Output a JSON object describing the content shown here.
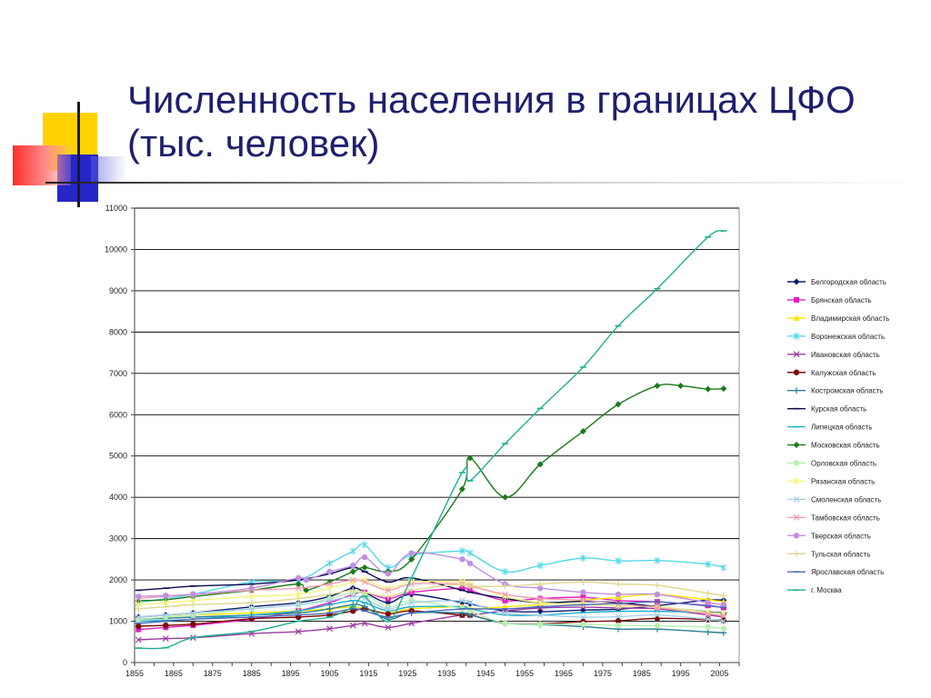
{
  "slide": {
    "title_line1": "Численность населения в границах ЦФО",
    "title_line2": "(тыс. человек)"
  },
  "chart_data": {
    "type": "line",
    "title": "",
    "xlabel": "",
    "ylabel": "",
    "xlim": [
      1855,
      2010
    ],
    "ylim": [
      0,
      11000
    ],
    "x_ticks": [
      1855,
      1865,
      1875,
      1885,
      1895,
      1905,
      1915,
      1925,
      1935,
      1945,
      1955,
      1965,
      1975,
      1985,
      1995,
      2005
    ],
    "y_ticks": [
      0,
      1000,
      2000,
      3000,
      4000,
      5000,
      6000,
      7000,
      8000,
      9000,
      10000,
      11000
    ],
    "grid": "horizontal",
    "legend": "right",
    "series": [
      {
        "name": "Белгородская область",
        "color": "#0a1a6e",
        "marker": "diamond",
        "x": [
          1856,
          1863,
          1870,
          1885,
          1897,
          1905,
          1911,
          1914,
          1920,
          1926,
          1939,
          1941,
          1950,
          1959,
          1970,
          1979,
          1989,
          2002,
          2006
        ],
        "y": [
          1100,
          1150,
          1200,
          1350,
          1450,
          1600,
          1800,
          1700,
          1450,
          1650,
          1450,
          1420,
          1250,
          1230,
          1270,
          1290,
          1380,
          1510,
          1510
        ]
      },
      {
        "name": "Брянская область",
        "color": "#e020c0",
        "marker": "square",
        "x": [
          1856,
          1863,
          1870,
          1885,
          1897,
          1905,
          1911,
          1914,
          1920,
          1926,
          1939,
          1941,
          1950,
          1959,
          1970,
          1979,
          1989,
          2002,
          2006
        ],
        "y": [
          800,
          850,
          900,
          1050,
          1250,
          1450,
          1650,
          1700,
          1550,
          1700,
          1800,
          1750,
          1500,
          1550,
          1580,
          1500,
          1470,
          1380,
          1330
        ]
      },
      {
        "name": "Владимирская область",
        "color": "#ffe600",
        "marker": "triangle",
        "x": [
          1856,
          1863,
          1870,
          1885,
          1897,
          1905,
          1911,
          1914,
          1920,
          1926,
          1939,
          1941,
          1950,
          1959,
          1970,
          1979,
          1989,
          2002,
          2006
        ],
        "y": [
          1050,
          1100,
          1150,
          1200,
          1250,
          1300,
          1350,
          1300,
          1200,
          1300,
          1350,
          1300,
          1350,
          1400,
          1510,
          1580,
          1650,
          1520,
          1470
        ]
      },
      {
        "name": "Воронежская область",
        "color": "#55d8e8",
        "marker": "star",
        "x": [
          1856,
          1863,
          1870,
          1885,
          1897,
          1905,
          1911,
          1914,
          1920,
          1926,
          1939,
          1941,
          1950,
          1959,
          1970,
          1979,
          1989,
          2002,
          2006
        ],
        "y": [
          1450,
          1550,
          1650,
          1950,
          2000,
          2400,
          2700,
          2850,
          2300,
          2600,
          2700,
          2650,
          2200,
          2350,
          2530,
          2460,
          2470,
          2380,
          2300
        ]
      },
      {
        "name": "Ивановская область",
        "color": "#9a3aa0",
        "marker": "x",
        "x": [
          1856,
          1863,
          1870,
          1885,
          1897,
          1905,
          1911,
          1914,
          1920,
          1926,
          1939,
          1941,
          1950,
          1959,
          1970,
          1979,
          1989,
          2002,
          2006
        ],
        "y": [
          550,
          580,
          600,
          700,
          750,
          820,
          900,
          950,
          850,
          950,
          1150,
          1150,
          1250,
          1320,
          1340,
          1320,
          1300,
          1150,
          1100
        ]
      },
      {
        "name": "Калужская область",
        "color": "#7a0a0a",
        "marker": "circle",
        "x": [
          1856,
          1863,
          1870,
          1885,
          1897,
          1905,
          1911,
          1914,
          1920,
          1926,
          1939,
          1941,
          1950,
          1959,
          1970,
          1979,
          1989,
          2002,
          2006
        ],
        "y": [
          880,
          900,
          930,
          1060,
          1100,
          1150,
          1250,
          1300,
          1180,
          1250,
          1150,
          1150,
          950,
          940,
          990,
          1010,
          1070,
          1040,
          1020
        ]
      },
      {
        "name": "Костромская область",
        "color": "#2a8090",
        "marker": "plus",
        "x": [
          1856,
          1863,
          1870,
          1885,
          1897,
          1905,
          1911,
          1914,
          1920,
          1926,
          1939,
          1941,
          1950,
          1959,
          1970,
          1979,
          1989,
          2002,
          2006
        ],
        "y": [
          1050,
          1070,
          1100,
          1150,
          1200,
          1300,
          1400,
          1350,
          1050,
          1200,
          1200,
          1150,
          950,
          920,
          870,
          810,
          810,
          740,
          720
        ]
      },
      {
        "name": "Курская область",
        "color": "#0a0a50",
        "marker": "dash",
        "x": [
          1856,
          1863,
          1870,
          1885,
          1897,
          1905,
          1911,
          1914,
          1920,
          1926,
          1939,
          1941,
          1950,
          1959,
          1970,
          1979,
          1989,
          2002,
          2006
        ],
        "y": [
          1750,
          1800,
          1850,
          1900,
          2000,
          2150,
          2300,
          2200,
          1950,
          2050,
          1750,
          1700,
          1550,
          1450,
          1480,
          1450,
          1350,
          1230,
          1200
        ]
      },
      {
        "name": "Липецкая область",
        "color": "#20b0c8",
        "marker": "dash",
        "x": [
          1856,
          1863,
          1870,
          1885,
          1897,
          1905,
          1911,
          1914,
          1920,
          1926,
          1939,
          1941,
          1950,
          1959,
          1970,
          1979,
          1989,
          2002,
          2006
        ],
        "y": [
          1000,
          1020,
          1050,
          1150,
          1250,
          1400,
          1500,
          1450,
          1250,
          1350,
          1350,
          1300,
          1150,
          1150,
          1210,
          1240,
          1240,
          1210,
          1180
        ]
      },
      {
        "name": "Московская область",
        "color": "#1a7a1a",
        "marker": "diamond",
        "x": [
          1856,
          1863,
          1870,
          1885,
          1897,
          1899,
          1905,
          1911,
          1914,
          1920,
          1926,
          1939,
          1941,
          1950,
          1959,
          1970,
          1979,
          1989,
          1995,
          2002,
          2006
        ],
        "y": [
          1500,
          1520,
          1600,
          1750,
          1900,
          1750,
          1950,
          2200,
          2300,
          2200,
          2500,
          4200,
          4950,
          4000,
          4800,
          5600,
          6250,
          6700,
          6700,
          6620,
          6630
        ]
      },
      {
        "name": "Орловская область",
        "color": "#b8f0b0",
        "marker": "circle",
        "x": [
          1856,
          1863,
          1870,
          1885,
          1897,
          1905,
          1911,
          1914,
          1920,
          1926,
          1939,
          1941,
          1950,
          1959,
          1970,
          1979,
          1989,
          2002,
          2006
        ],
        "y": [
          1050,
          1100,
          1150,
          1300,
          1400,
          1550,
          1700,
          1650,
          1350,
          1500,
          1300,
          1250,
          950,
          930,
          930,
          900,
          890,
          860,
          820
        ]
      },
      {
        "name": "Рязанская область",
        "color": "#f5f580",
        "marker": "star",
        "x": [
          1856,
          1863,
          1870,
          1885,
          1897,
          1905,
          1911,
          1914,
          1920,
          1926,
          1939,
          1941,
          1950,
          1959,
          1970,
          1979,
          1989,
          2002,
          2006
        ],
        "y": [
          1400,
          1450,
          1500,
          1600,
          1650,
          1800,
          1950,
          2000,
          1800,
          1950,
          1950,
          1900,
          1600,
          1450,
          1410,
          1370,
          1350,
          1220,
          1180
        ]
      },
      {
        "name": "Смоленская область",
        "color": "#a8d0e8",
        "marker": "x",
        "x": [
          1856,
          1863,
          1870,
          1885,
          1897,
          1905,
          1911,
          1914,
          1920,
          1926,
          1939,
          1941,
          1950,
          1959,
          1970,
          1979,
          1989,
          2002,
          2006
        ],
        "y": [
          1100,
          1150,
          1200,
          1300,
          1400,
          1500,
          1600,
          1550,
          1300,
          1450,
          1500,
          1450,
          1200,
          1150,
          1100,
          1110,
          1150,
          1050,
          1000
        ]
      },
      {
        "name": "Тамбовская область",
        "color": "#f0a0b0",
        "marker": "x",
        "x": [
          1856,
          1863,
          1870,
          1885,
          1897,
          1905,
          1911,
          1914,
          1920,
          1926,
          1939,
          1941,
          1950,
          1959,
          1970,
          1979,
          1989,
          2002,
          2006
        ],
        "y": [
          1550,
          1600,
          1650,
          1750,
          1800,
          1900,
          2000,
          1950,
          1750,
          1900,
          1900,
          1850,
          1650,
          1550,
          1510,
          1420,
          1330,
          1180,
          1130
        ]
      },
      {
        "name": "Тверская область",
        "color": "#c090e0",
        "marker": "circle",
        "x": [
          1856,
          1863,
          1870,
          1885,
          1897,
          1899,
          1905,
          1911,
          1914,
          1920,
          1926,
          1939,
          1941,
          1950,
          1959,
          1970,
          1979,
          1989,
          2002,
          2006
        ],
        "y": [
          1600,
          1620,
          1650,
          1800,
          2050,
          2000,
          2200,
          2350,
          2550,
          2150,
          2650,
          2500,
          2400,
          1900,
          1800,
          1700,
          1650,
          1650,
          1450,
          1400
        ]
      },
      {
        "name": "Тульская область",
        "color": "#e0d890",
        "marker": "plus",
        "x": [
          1856,
          1863,
          1870,
          1885,
          1897,
          1905,
          1911,
          1914,
          1920,
          1926,
          1939,
          1941,
          1950,
          1959,
          1970,
          1979,
          1989,
          2002,
          2006
        ],
        "y": [
          1300,
          1350,
          1400,
          1450,
          1550,
          1650,
          1750,
          1700,
          1600,
          1750,
          1900,
          1850,
          1850,
          1900,
          1950,
          1900,
          1870,
          1680,
          1620
        ]
      },
      {
        "name": "Ярославская область",
        "color": "#4a6ab8",
        "marker": "dash",
        "x": [
          1856,
          1863,
          1870,
          1885,
          1897,
          1905,
          1911,
          1914,
          1920,
          1926,
          1939,
          1941,
          1950,
          1959,
          1970,
          1979,
          1989,
          2002,
          2006
        ],
        "y": [
          950,
          1000,
          1050,
          1100,
          1150,
          1200,
          1300,
          1250,
          1100,
          1200,
          1300,
          1300,
          1300,
          1350,
          1400,
          1430,
          1470,
          1370,
          1330
        ]
      },
      {
        "name": "г. Москва",
        "color": "#20b090",
        "marker": "dash",
        "x": [
          1856,
          1863,
          1870,
          1885,
          1897,
          1905,
          1911,
          1914,
          1920,
          1926,
          1939,
          1941,
          1950,
          1959,
          1970,
          1979,
          1989,
          2002,
          2006
        ],
        "y": [
          350,
          360,
          600,
          750,
          1000,
          1100,
          1350,
          1600,
          1000,
          2050,
          4600,
          4400,
          5300,
          6150,
          7150,
          8150,
          9050,
          10300,
          10450
        ]
      }
    ]
  }
}
